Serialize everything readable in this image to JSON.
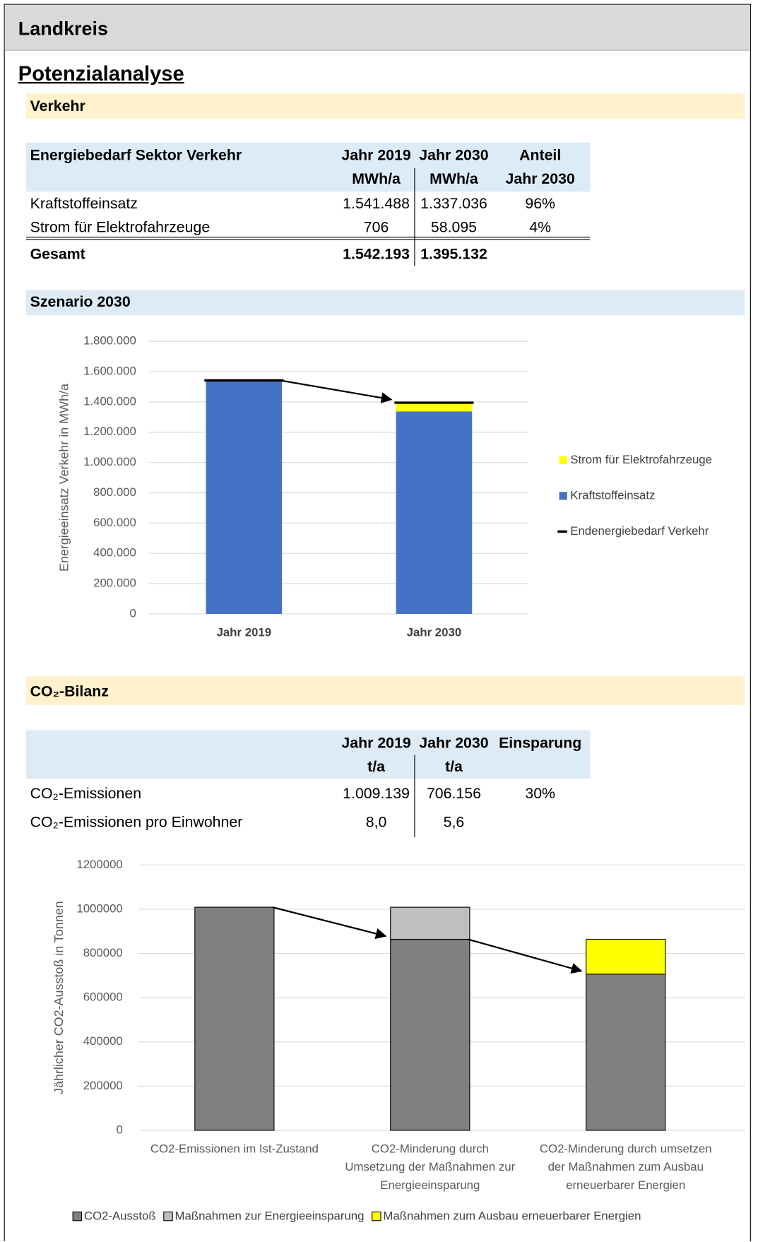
{
  "header": {
    "title": "Landkreis"
  },
  "heading": "Potenzialanalyse",
  "sections": [
    "Verkehr",
    "Szenario 2030",
    "CO₂-Bilanz"
  ],
  "table1": {
    "title_cell": "Energiebedarf Sektor Verkehr",
    "columns": [
      [
        "Jahr 2019",
        "MWh/a"
      ],
      [
        "Jahr 2030",
        "MWh/a"
      ],
      [
        "Anteil",
        "Jahr 2030"
      ]
    ],
    "rows": [
      [
        "Kraftstoffeinsatz",
        "1.541.488",
        "1.337.036",
        "96%"
      ],
      [
        "Strom für Elektrofahrzeuge",
        "706",
        "58.095",
        "4%"
      ]
    ],
    "total": [
      "Gesamt",
      "1.542.193",
      "1.395.132"
    ]
  },
  "table2": {
    "columns": [
      [
        "Jahr 2019",
        "t/a"
      ],
      [
        "Jahr 2030",
        "t/a"
      ],
      [
        "Einsparung"
      ]
    ],
    "rows": [
      [
        "CO₂-Emissionen",
        "1.009.139",
        "706.156",
        "30%"
      ],
      [
        "CO₂-Emissionen pro Einwohner",
        "8,0",
        "5,6"
      ]
    ]
  },
  "chart_data": [
    {
      "type": "stacked_bar",
      "categories": [
        "Jahr 2019",
        "Jahr 2030"
      ],
      "series": [
        {
          "name": "Kraftstoffeinsatz",
          "color": "#4472c4",
          "values": [
            1541488,
            1337036
          ]
        },
        {
          "name": "Strom für Elektrofahrzeuge",
          "color": "#ffff00",
          "values": [
            706,
            58095
          ]
        },
        {
          "name": "Endenergiebedarf Verkehr",
          "color": "#000000",
          "type": "marker_line",
          "values": [
            1542193,
            1395132
          ]
        }
      ],
      "ylabel": "Energieeinsatz Verkehr in MWh/a",
      "ylim": [
        0,
        1800000
      ],
      "yticks": [
        0,
        {
          "value": 200000,
          "label": "200.000"
        },
        {
          "value": 400000,
          "label": "400.000"
        },
        {
          "value": 600000,
          "label": "600.000"
        },
        {
          "value": 800000,
          "label": "800.000"
        },
        {
          "value": 1000000,
          "label": "1.000.000"
        },
        {
          "value": 1200000,
          "label": "1.200.000"
        },
        {
          "value": 1400000,
          "label": "1.400.000"
        },
        {
          "value": 1600000,
          "label": "1.600.000"
        },
        {
          "value": 1800000,
          "label": "1.800.000"
        }
      ],
      "grid": true,
      "legend": "right",
      "arrows": true
    },
    {
      "type": "stacked_bar",
      "categories": [
        [
          "CO2-Emissionen im Ist-Zustand"
        ],
        [
          "CO2-Minderung durch",
          "Umsetzung der Maßnahmen zur",
          "Energieeinsparung"
        ],
        [
          "CO2-Minderung durch umsetzen",
          "der Maßnahmen zum Ausbau",
          "erneuerbarer Energien"
        ]
      ],
      "series": [
        {
          "name": "CO2-Ausstoß",
          "color": "#808080",
          "values": [
            1009139,
            864000,
            706156
          ]
        },
        {
          "name": "Maßnahmen zur Energieeinsparung",
          "color": "#bfbfbf",
          "values": [
            null,
            145000,
            null
          ]
        },
        {
          "name": "Maßnahmen zum Ausbau erneuerbarer Energien",
          "color": "#ffff00",
          "values": [
            null,
            null,
            158000
          ]
        }
      ],
      "ylabel": "Jährlicher CO2-Ausstoß in Tonnen",
      "ylim": [
        0,
        1200000
      ],
      "yticks": [
        0,
        200000,
        400000,
        600000,
        800000,
        1000000,
        1200000
      ],
      "grid": true,
      "legend": "bottom",
      "arrows": true
    }
  ]
}
